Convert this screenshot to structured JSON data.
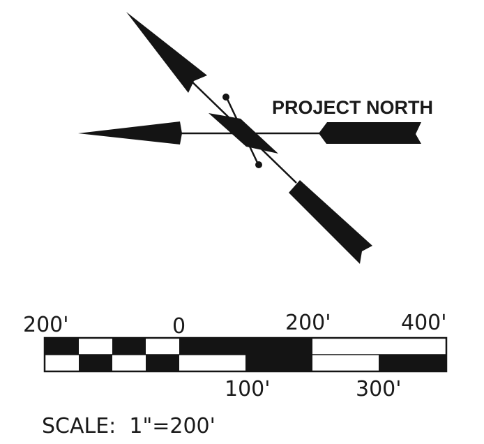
{
  "north_arrow": {
    "label": "PROJECT NORTH"
  },
  "scale_bar": {
    "top_labels": [
      "200'",
      "0",
      "200'",
      "400'"
    ],
    "bottom_labels": [
      "100'",
      "300'"
    ],
    "scale_text": "SCALE:  1\"=200'"
  },
  "colors": {
    "ink": "#141414",
    "paper": "#ffffff"
  }
}
